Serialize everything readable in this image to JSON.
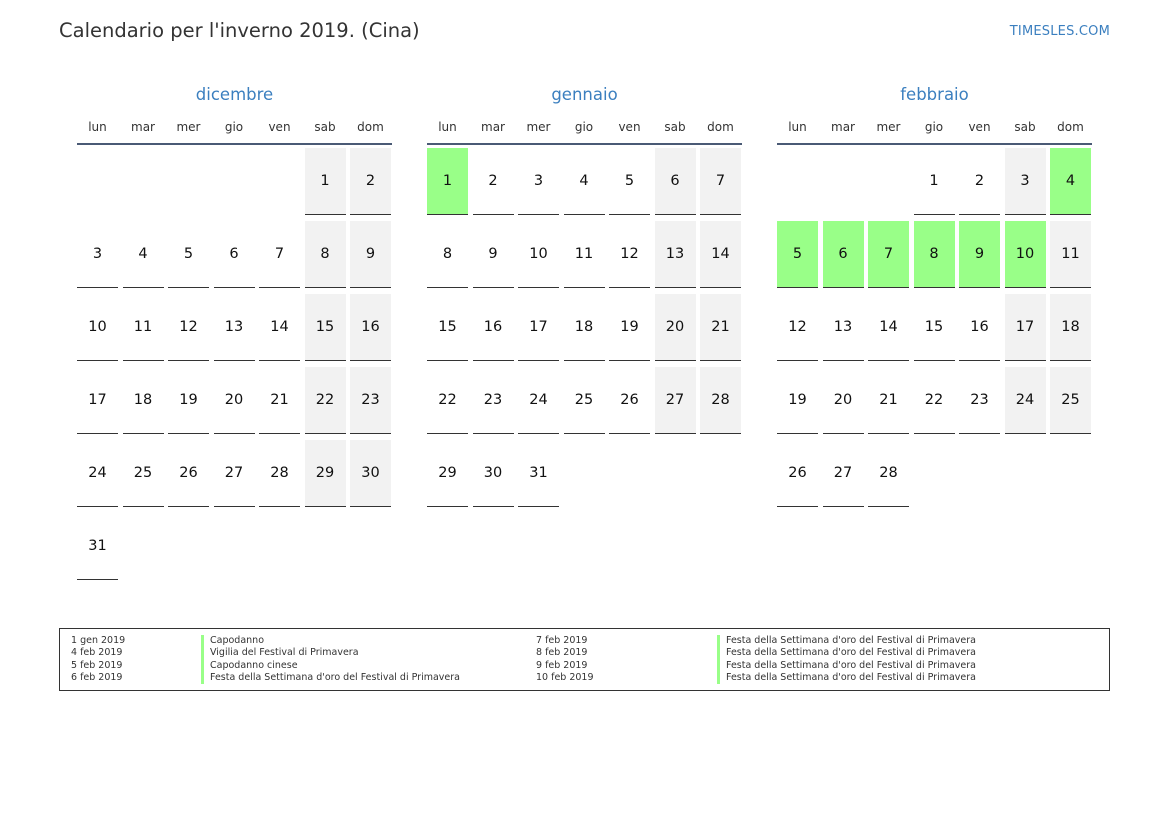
{
  "header": {
    "title": "Calendario per l'inverno 2019. (Cina)",
    "brand": "TIMESLES.COM"
  },
  "weekdays": [
    "lun",
    "mar",
    "mer",
    "gio",
    "ven",
    "sab",
    "dom"
  ],
  "colors": {
    "accent": "#3b7fbf",
    "holiday": "#99ff88",
    "weekend": "#f2f2f2"
  },
  "months": [
    {
      "name": "dicembre",
      "start_weekday": 6,
      "days": 31,
      "holidays": []
    },
    {
      "name": "gennaio",
      "start_weekday": 1,
      "days": 31,
      "holidays": [
        1
      ]
    },
    {
      "name": "febbraio",
      "start_weekday": 4,
      "days": 28,
      "holidays": [
        4,
        5,
        6,
        7,
        8,
        9,
        10
      ]
    }
  ],
  "legend": {
    "left": [
      {
        "date": "1 gen 2019",
        "name": "Capodanno"
      },
      {
        "date": "4 feb 2019",
        "name": "Vigilia del Festival di Primavera"
      },
      {
        "date": "5 feb 2019",
        "name": "Capodanno cinese"
      },
      {
        "date": "6 feb 2019",
        "name": "Festa della Settimana d'oro del Festival di Primavera"
      }
    ],
    "right": [
      {
        "date": "7 feb 2019",
        "name": "Festa della Settimana d'oro del Festival di Primavera"
      },
      {
        "date": "8 feb 2019",
        "name": "Festa della Settimana d'oro del Festival di Primavera"
      },
      {
        "date": "9 feb 2019",
        "name": "Festa della Settimana d'oro del Festival di Primavera"
      },
      {
        "date": "10 feb 2019",
        "name": "Festa della Settimana d'oro del Festival di Primavera"
      }
    ]
  }
}
